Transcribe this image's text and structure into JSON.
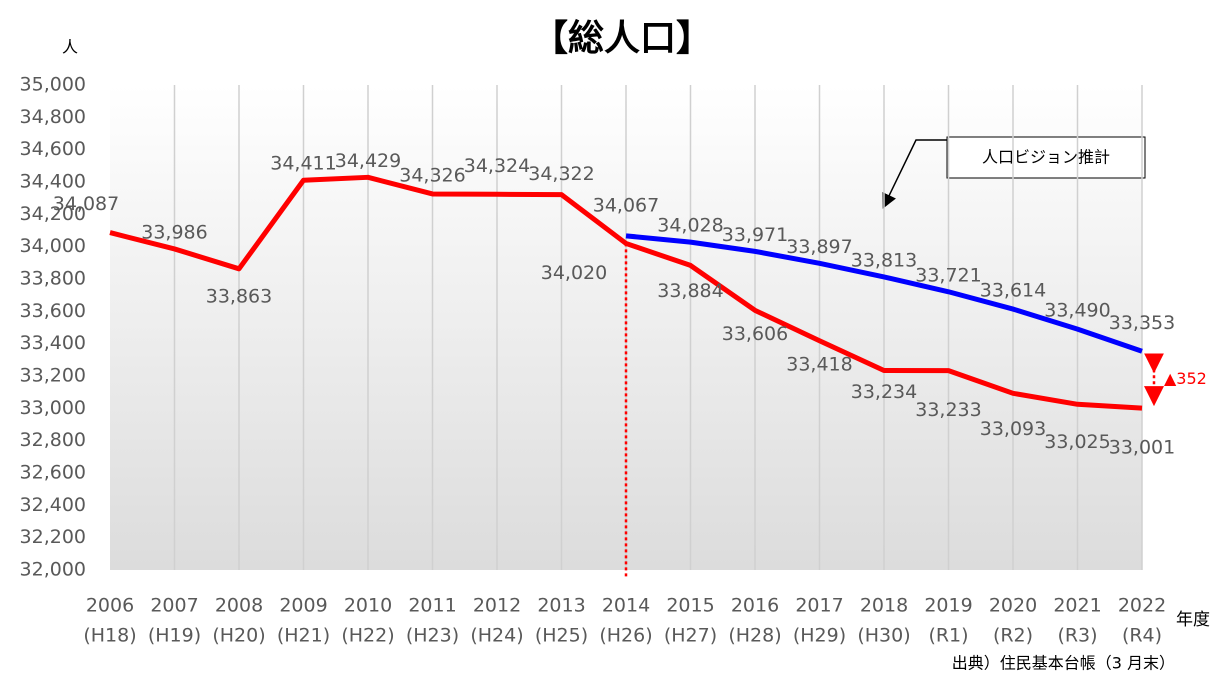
{
  "chart_data": {
    "type": "line",
    "title": "【総人口】",
    "y_label": "人",
    "x_label": "年度",
    "source": "出典）住民基本台帳（3 月末）",
    "categories": [
      "2006",
      "2007",
      "2008",
      "2009",
      "2010",
      "2011",
      "2012",
      "2013",
      "2014",
      "2015",
      "2016",
      "2017",
      "2018",
      "2019",
      "2020",
      "2021",
      "2022"
    ],
    "era_labels": [
      "(H18)",
      "(H19)",
      "(H20)",
      "(H21)",
      "(H22)",
      "(H23)",
      "(H24)",
      "(H25)",
      "(H26)",
      "(H27)",
      "(H28)",
      "(H29)",
      "(H30)",
      "(R1)",
      "(R2)",
      "(R3)",
      "(R4)"
    ],
    "series": [
      {
        "name": null,
        "color": "#ff0000",
        "values": [
          34087,
          33986,
          33863,
          34411,
          34429,
          34326,
          34324,
          34322,
          34020,
          33884,
          33606,
          33418,
          33234,
          33233,
          33093,
          33025,
          33001
        ],
        "value_labels": [
          "34,087",
          "33,986",
          "33,863",
          "34,411",
          "34,429",
          "34,326",
          "34,324",
          "34,322",
          "34,020",
          "33,884",
          "33,606",
          "33,418",
          "33,234",
          "33,233",
          "33,093",
          "33,025",
          "33,001"
        ]
      },
      {
        "name": "人口ビジョン推計",
        "color": "#0000ff",
        "values": [
          null,
          null,
          null,
          null,
          null,
          null,
          null,
          null,
          34067,
          34028,
          33971,
          33897,
          33813,
          33721,
          33614,
          33490,
          33353
        ],
        "value_labels": [
          null,
          null,
          null,
          null,
          null,
          null,
          null,
          null,
          "34,067",
          "34,028",
          "33,971",
          "33,897",
          "33,813",
          "33,721",
          "33,614",
          "33,490",
          "33,353"
        ]
      }
    ],
    "annotation": "▲352",
    "ylim": [
      32000,
      35000
    ],
    "yticks": [
      {
        "value": 32000,
        "label": "32,000"
      },
      {
        "value": 32200,
        "label": "32,200"
      },
      {
        "value": 32400,
        "label": "32,400"
      },
      {
        "value": 32600,
        "label": "32,600"
      },
      {
        "value": 32800,
        "label": "32,800"
      },
      {
        "value": 33000,
        "label": "33,000"
      },
      {
        "value": 33200,
        "label": "33,200"
      },
      {
        "value": 33400,
        "label": "33,400"
      },
      {
        "value": 33600,
        "label": "33,600"
      },
      {
        "value": 33800,
        "label": "33,800"
      },
      {
        "value": 34000,
        "label": "34,000"
      },
      {
        "value": 34200,
        "label": "34,200"
      },
      {
        "value": 34400,
        "label": "34,400"
      },
      {
        "value": 34600,
        "label": "34,600"
      },
      {
        "value": 34800,
        "label": "34,800"
      },
      {
        "value": 35000,
        "label": "35,000"
      }
    ],
    "grid": true
  }
}
